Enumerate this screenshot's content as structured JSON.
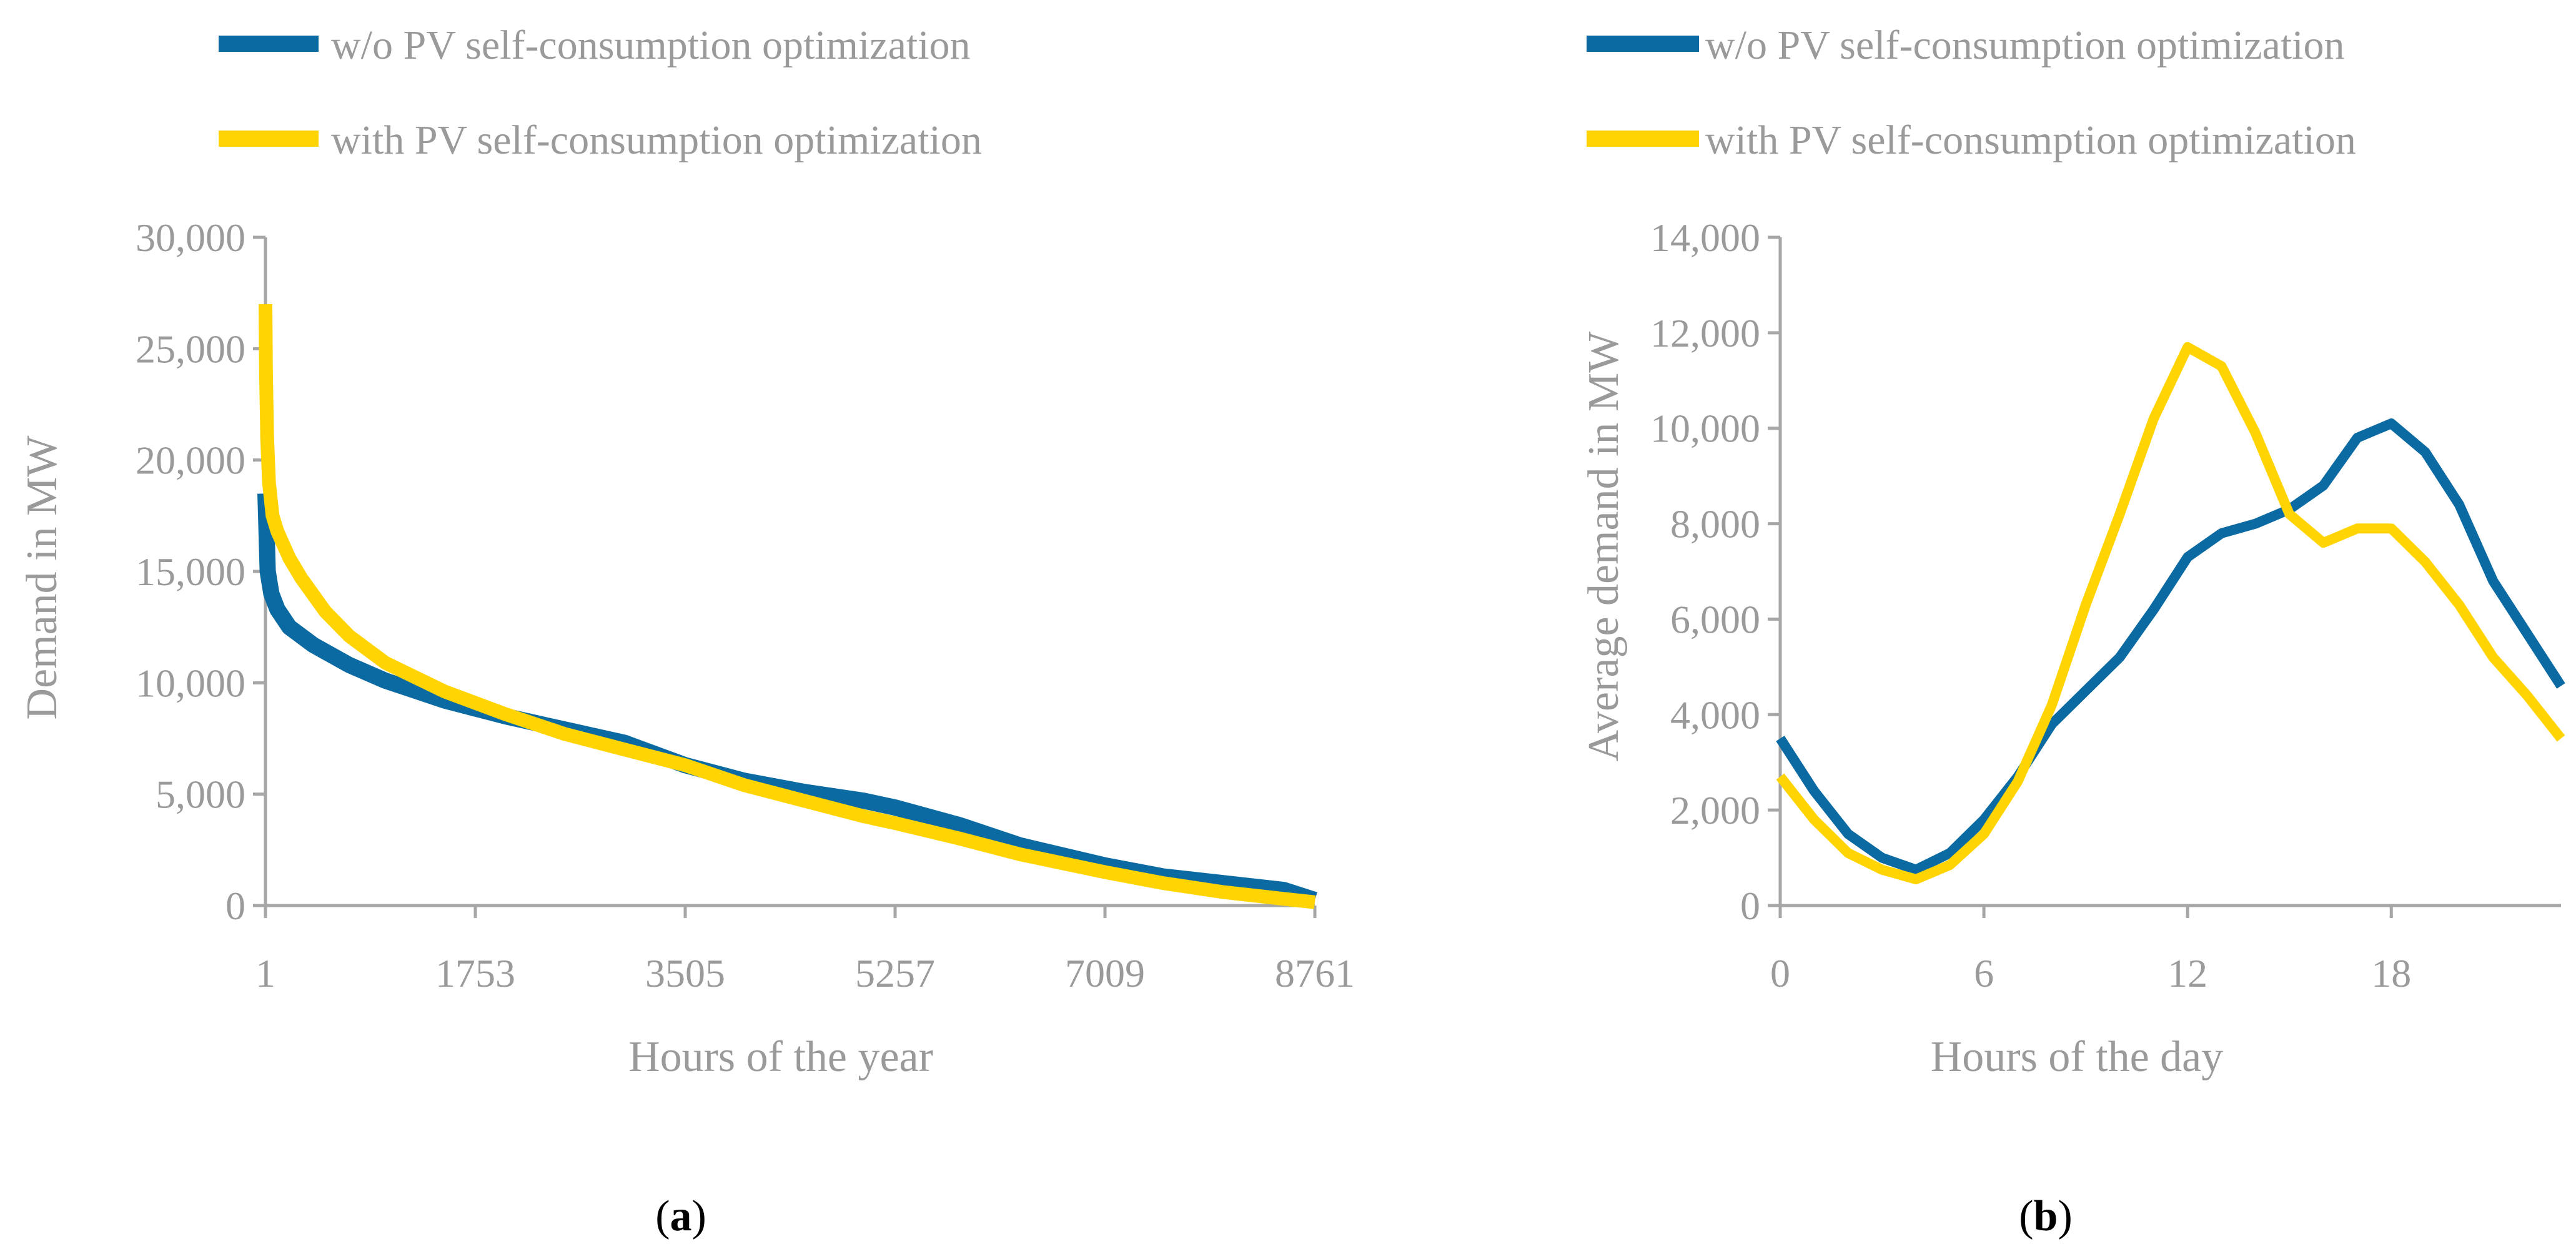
{
  "colors": {
    "blue": "#0b6aa2",
    "yellow": "#ffd400"
  },
  "chart_data": [
    {
      "type": "line",
      "caption_letter": "a",
      "xlabel": "Hours of the year",
      "ylabel": "Demand in MW",
      "xlim": [
        1,
        8761
      ],
      "ylim": [
        0,
        30000
      ],
      "xticks": [
        1,
        1753,
        3505,
        5257,
        7009,
        8761
      ],
      "xtick_labels": [
        "1",
        "1753",
        "3505",
        "5257",
        "7009",
        "8761"
      ],
      "yticks": [
        0,
        5000,
        10000,
        15000,
        20000,
        25000,
        30000
      ],
      "ytick_labels": [
        "0",
        "5,000",
        "10,000",
        "15,000",
        "20,000",
        "25,000",
        "30,000"
      ],
      "legend": [
        "w/o PV self-consumption optimization",
        "with PV self-consumption optimization"
      ],
      "series": [
        {
          "name": "w/o PV self-consumption optimization",
          "color": "#0b6aa2",
          "x": [
            1,
            20,
            50,
            100,
            200,
            400,
            700,
            1000,
            1500,
            2000,
            2500,
            3000,
            3505,
            4000,
            4500,
            5000,
            5257,
            5800,
            6300,
            7009,
            7500,
            8000,
            8500,
            8761
          ],
          "y": [
            18500,
            15000,
            14000,
            13300,
            12500,
            11700,
            10800,
            10100,
            9200,
            8500,
            7900,
            7300,
            6300,
            5600,
            5100,
            4700,
            4400,
            3600,
            2700,
            1800,
            1300,
            1000,
            700,
            250
          ]
        },
        {
          "name": "with PV self-consumption optimization",
          "color": "#ffd400",
          "x": [
            1,
            5,
            15,
            30,
            60,
            100,
            200,
            300,
            500,
            700,
            1000,
            1500,
            2000,
            2500,
            3000,
            3505,
            4000,
            4500,
            5000,
            5257,
            5800,
            6300,
            7009,
            7500,
            8000,
            8500,
            8761
          ],
          "y": [
            27000,
            24000,
            21000,
            19000,
            17500,
            16800,
            15600,
            14700,
            13200,
            12100,
            10900,
            9600,
            8600,
            7700,
            7000,
            6300,
            5400,
            4700,
            4000,
            3700,
            3000,
            2300,
            1500,
            1000,
            600,
            300,
            150
          ]
        }
      ]
    },
    {
      "type": "line",
      "caption_letter": "b",
      "xlabel": "Hours of the day",
      "ylabel": "Average demand in MW",
      "xlim": [
        0,
        23
      ],
      "ylim": [
        0,
        14000
      ],
      "xticks": [
        0,
        6,
        12,
        18
      ],
      "xtick_labels": [
        "0",
        "6",
        "12",
        "18"
      ],
      "yticks": [
        0,
        2000,
        4000,
        6000,
        8000,
        10000,
        12000,
        14000
      ],
      "ytick_labels": [
        "0",
        "2,000",
        "4,000",
        "6,000",
        "8,000",
        "10,000",
        "12,000",
        "14,000"
      ],
      "legend": [
        "w/o PV self-consumption optimization",
        "with PV self-consumption optimization"
      ],
      "series": [
        {
          "name": "w/o PV self-consumption optimization",
          "color": "#0b6aa2",
          "x": [
            0,
            1,
            2,
            3,
            4,
            5,
            6,
            7,
            8,
            9,
            10,
            11,
            12,
            13,
            14,
            15,
            16,
            17,
            18,
            19,
            20,
            21,
            22,
            23
          ],
          "y": [
            3500,
            2400,
            1500,
            1000,
            750,
            1100,
            1800,
            2700,
            3800,
            4500,
            5200,
            6200,
            7300,
            7800,
            8000,
            8300,
            8800,
            9800,
            10100,
            9500,
            8400,
            6800,
            5700,
            4600
          ]
        },
        {
          "name": "with PV self-consumption optimization",
          "color": "#ffd400",
          "x": [
            0,
            1,
            2,
            3,
            4,
            5,
            6,
            7,
            8,
            9,
            10,
            11,
            12,
            13,
            14,
            15,
            16,
            17,
            18,
            19,
            20,
            21,
            22,
            23
          ],
          "y": [
            2700,
            1800,
            1100,
            750,
            550,
            850,
            1500,
            2600,
            4200,
            6300,
            8200,
            10200,
            11700,
            11300,
            9900,
            8200,
            7600,
            7900,
            7900,
            7200,
            6300,
            5200,
            4400,
            3500
          ]
        }
      ]
    }
  ]
}
